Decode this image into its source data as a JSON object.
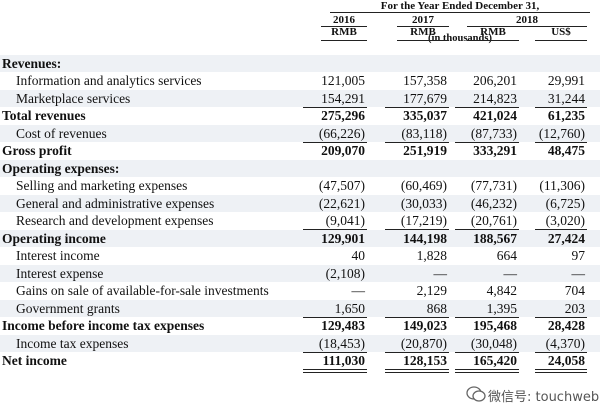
{
  "header": {
    "title": "For the Year Ended December 31,",
    "years": [
      "2016",
      "2017",
      "2018"
    ],
    "currencies": [
      "RMB",
      "RMB",
      "RMB",
      "US$"
    ],
    "unit": "(in thousands)"
  },
  "rows": [
    {
      "label": "Revenues:",
      "bold": true,
      "values": []
    },
    {
      "label": "Information and analytics services",
      "bold": false,
      "values": [
        "121,005",
        "157,358",
        "206,201",
        "29,991"
      ]
    },
    {
      "label": "Marketplace services",
      "bold": false,
      "values": [
        "154,291",
        "177,679",
        "214,823",
        "31,244"
      ]
    },
    {
      "label": "Total revenues",
      "bold": true,
      "values": [
        "275,296",
        "335,037",
        "421,024",
        "61,235"
      ]
    },
    {
      "label": "Cost of revenues",
      "bold": false,
      "values": [
        "(66,226)",
        "(83,118)",
        "(87,733)",
        "(12,760)"
      ]
    },
    {
      "label": "Gross profit",
      "bold": true,
      "values": [
        "209,070",
        "251,919",
        "333,291",
        "48,475"
      ]
    },
    {
      "label": "Operating expenses:",
      "bold": true,
      "values": []
    },
    {
      "label": "Selling and marketing expenses",
      "bold": false,
      "values": [
        "(47,507)",
        "(60,469)",
        "(77,731)",
        "(11,306)"
      ]
    },
    {
      "label": "General and administrative expenses",
      "bold": false,
      "values": [
        "(22,621)",
        "(30,033)",
        "(46,232)",
        "(6,725)"
      ]
    },
    {
      "label": "Research and development expenses",
      "bold": false,
      "values": [
        "(9,041)",
        "(17,219)",
        "(20,761)",
        "(3,020)"
      ]
    },
    {
      "label": "Operating income",
      "bold": true,
      "values": [
        "129,901",
        "144,198",
        "188,567",
        "27,424"
      ]
    },
    {
      "label": "Interest income",
      "bold": false,
      "values": [
        "40",
        "1,828",
        "664",
        "97"
      ]
    },
    {
      "label": "Interest expense",
      "bold": false,
      "values": [
        "(2,108)",
        "—",
        "—",
        "—"
      ]
    },
    {
      "label": "Gains on sale of available-for-sale investments",
      "bold": false,
      "values": [
        "—",
        "2,129",
        "4,842",
        "704"
      ]
    },
    {
      "label": "Government grants",
      "bold": false,
      "values": [
        "1,650",
        "868",
        "1,395",
        "203"
      ]
    },
    {
      "label": "Income before income tax expenses",
      "bold": true,
      "values": [
        "129,483",
        "149,023",
        "195,468",
        "28,428"
      ]
    },
    {
      "label": "Income tax expenses",
      "bold": false,
      "values": [
        "(18,453)",
        "(20,870)",
        "(30,048)",
        "(4,370)"
      ]
    },
    {
      "label": "Net income",
      "bold": true,
      "values": [
        "111,030",
        "128,153",
        "165,420",
        "24,058"
      ]
    }
  ],
  "watermark": "微信号: touchweb"
}
